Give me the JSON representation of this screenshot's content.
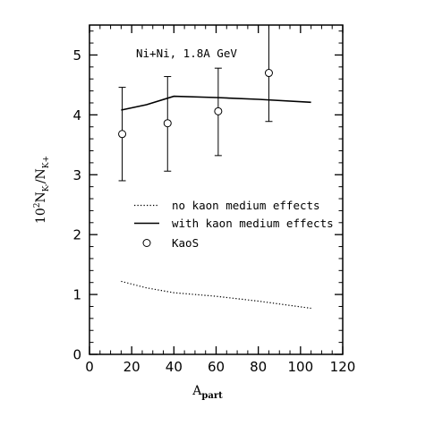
{
  "chart_data": {
    "type": "line",
    "annotation": "Ni+Ni, 1.8A GeV",
    "xlabel": {
      "main": "A",
      "sub": "part"
    },
    "ylabel": {
      "prefix": "10",
      "sup": "2",
      "n1": "N",
      "s1": "K-",
      "slash": "/",
      "n2": "N",
      "s2": "K+"
    },
    "xlim": [
      0,
      120
    ],
    "ylim": [
      0,
      5.5
    ],
    "xticks": [
      "0",
      "20",
      "40",
      "60",
      "80",
      "100",
      "120"
    ],
    "yticks": [
      "0",
      "1",
      "2",
      "3",
      "4",
      "5"
    ],
    "grid": false,
    "legend_position": "center-right",
    "series": [
      {
        "name": "no kaon medium effects",
        "style": "dotted",
        "x": [
          15,
          27,
          40,
          60,
          80,
          105
        ],
        "y": [
          1.22,
          1.11,
          1.03,
          0.97,
          0.89,
          0.77
        ]
      },
      {
        "name": "with kaon medium effects",
        "style": "solid",
        "x": [
          15,
          27,
          40,
          60,
          80,
          105
        ],
        "y": [
          4.08,
          4.17,
          4.31,
          4.29,
          4.26,
          4.21
        ]
      },
      {
        "name": "KaoS",
        "style": "markers",
        "x": [
          15.5,
          37,
          61,
          85
        ],
        "y": [
          3.68,
          3.86,
          4.06,
          4.7
        ],
        "err_low": [
          0.78,
          0.8,
          0.74,
          0.81
        ],
        "err_high": [
          0.78,
          0.78,
          0.72,
          0.81
        ]
      }
    ]
  }
}
